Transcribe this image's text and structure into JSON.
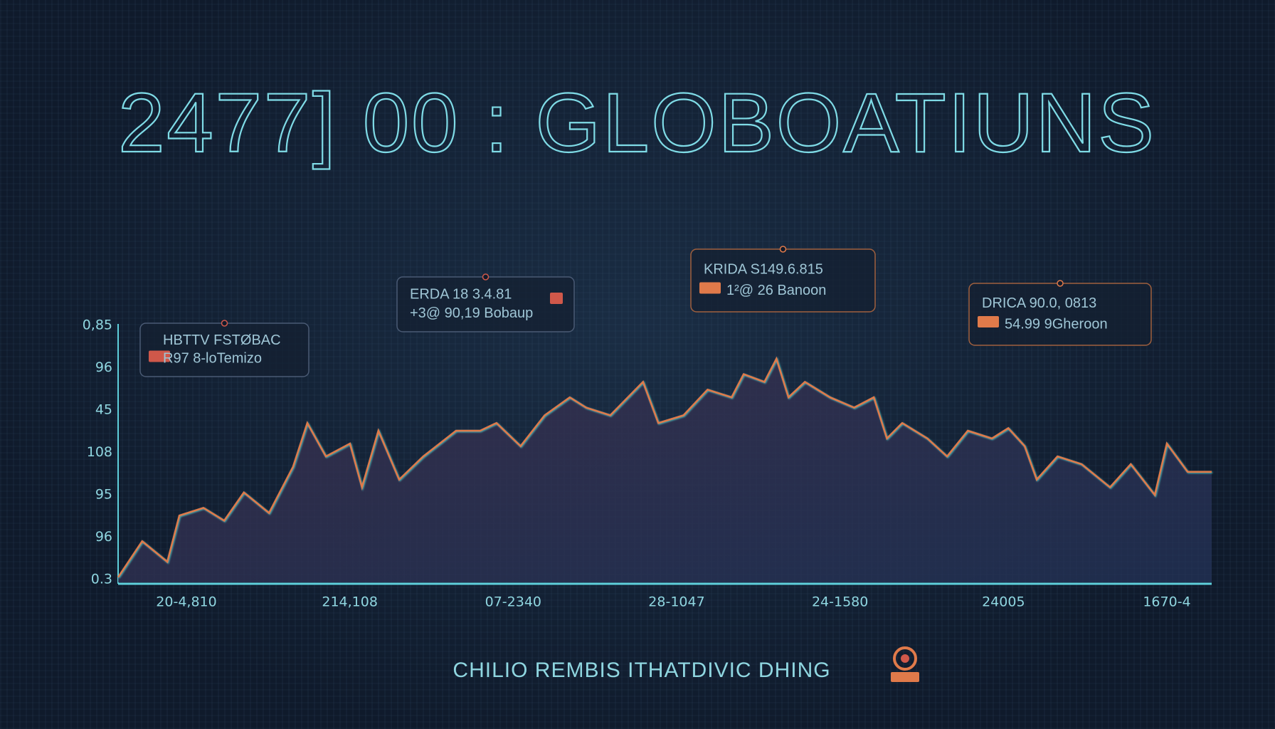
{
  "chart_data": {
    "type": "line",
    "title": "2477] 00 : GLOBOATIUNS",
    "footer": "CHILIO REMBIS ITHATDIVIC DHING",
    "y_labels": [
      "0,85",
      "96",
      "45",
      "108",
      "95",
      "96",
      "0.3"
    ],
    "x_labels": [
      "20-4,810",
      "214,108",
      "07-2340",
      "28-1047",
      "24-1580",
      "24005",
      "1670-4"
    ],
    "xlim": [
      0,
      100
    ],
    "ylim": [
      0,
      100
    ],
    "series": [
      {
        "color": "#e07a4a",
        "x": [
          0,
          2.2,
          4.5,
          5.6,
          7.8,
          9.7,
          11.5,
          13.8,
          16,
          17.3,
          19,
          21.2,
          22.3,
          23.8,
          25.7,
          27.9,
          30.9,
          33.1,
          34.6,
          36.8,
          39,
          41.3,
          42.8,
          45,
          48,
          49.4,
          51.7,
          53.9,
          56.1,
          57.2,
          59.1,
          60.2,
          61.3,
          62.8,
          65.1,
          67.3,
          69.1,
          70.3,
          71.7,
          74,
          75.8,
          77.7,
          79.9,
          81.4,
          82.9,
          84,
          85.9,
          88.1,
          90.7,
          92.6,
          94.8,
          95.9,
          97.8,
          100
        ],
        "values": [
          2,
          16,
          8,
          26,
          29,
          24,
          35,
          27,
          45,
          62,
          49,
          54,
          37,
          59,
          40,
          49,
          59,
          59,
          62,
          53,
          65,
          72,
          68,
          65,
          78,
          62,
          65,
          75,
          72,
          81,
          78,
          87,
          72,
          78,
          72,
          68,
          72,
          56,
          62,
          56,
          49,
          59,
          56,
          60,
          53,
          40,
          49,
          46,
          37,
          46,
          34,
          54,
          43,
          43
        ]
      }
    ],
    "annotations": [
      {
        "lines": [
          "HBTTV FSTØBAC",
          "R97 8-loTemizo"
        ],
        "accent": "#d0584a"
      },
      {
        "lines": [
          "ERDA 18 3.4.81",
          "+3@ 90,19 Bobaup"
        ],
        "accent": "#d0584a"
      },
      {
        "lines": [
          "KRIDA S149.6.815",
          "1²@ 26 Banoon"
        ],
        "accent": "#e07a4a"
      },
      {
        "lines": [
          "DRICA 90.0, 0813",
          "54.99 9Gheroon"
        ],
        "accent": "#e07a4a"
      }
    ]
  }
}
